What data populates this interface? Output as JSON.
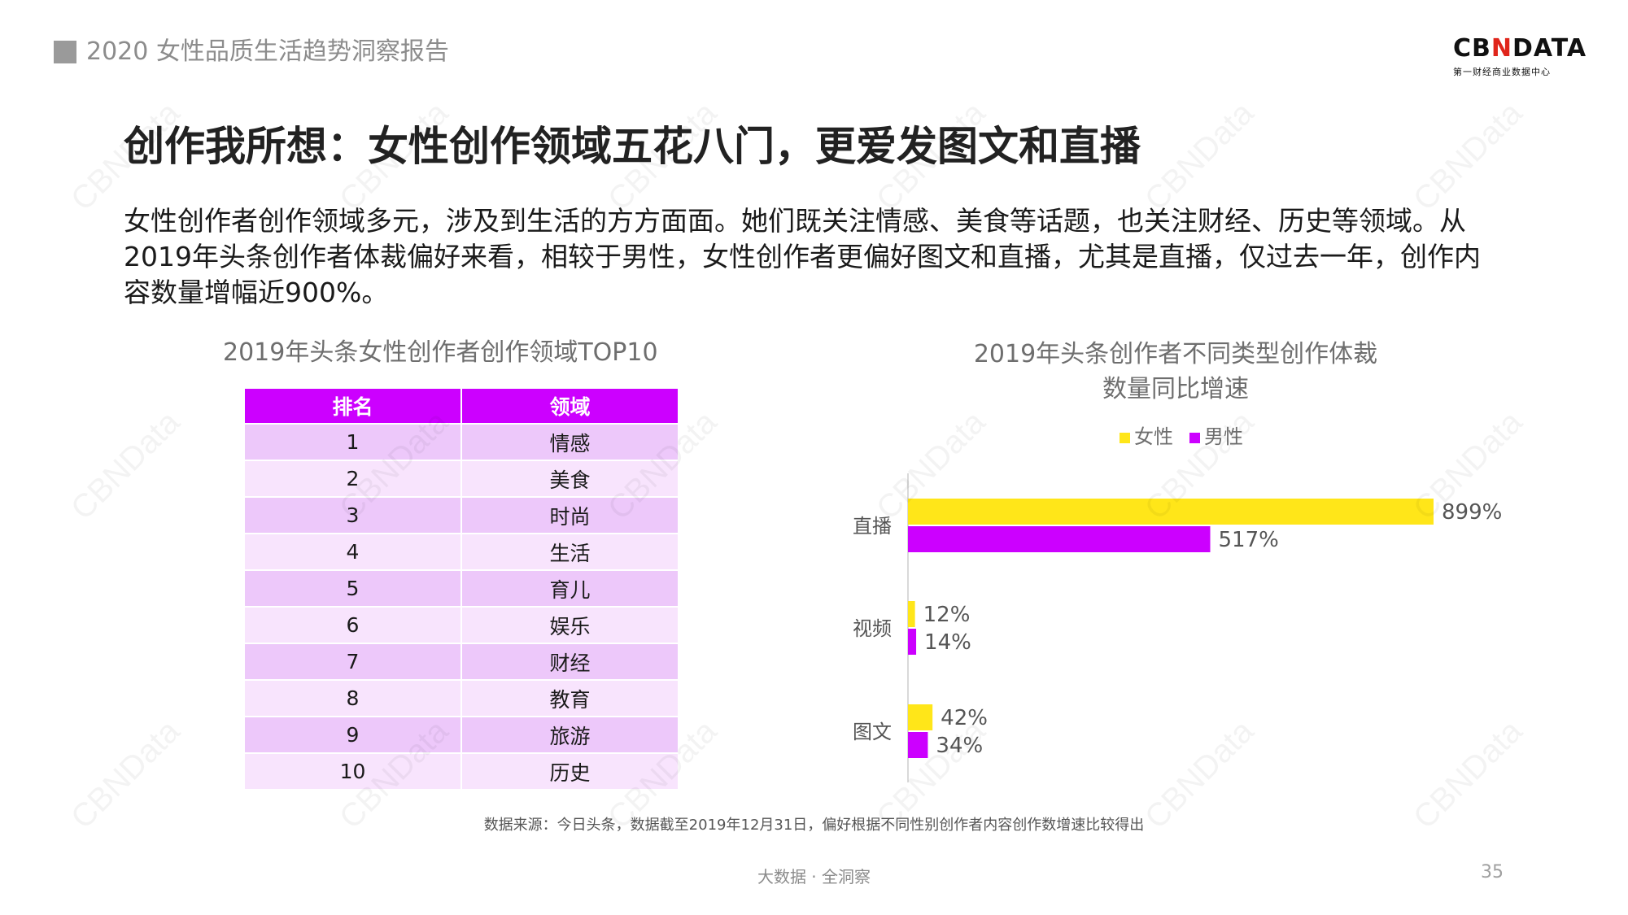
{
  "header": {
    "report_title": "2020 女性品质生活趋势洞察报告",
    "logo_main_left": "CB",
    "logo_main_x": "N",
    "logo_main_right": "DATA",
    "logo_sub": "第一财经商业数据中心"
  },
  "slide": {
    "title": "创作我所想：女性创作领域五花八门，更爱发图文和直播",
    "intro": "女性创作者创作领域多元，涉及到生活的方方面面。她们既关注情感、美食等话题，也关注财经、历史等领域。从2019年头条创作者体裁偏好来看，相较于男性，女性创作者更偏好图文和直播，尤其是直播，仅过去一年，创作内容数量增幅近900%。"
  },
  "table": {
    "title": "2019年头条女性创作者创作领域TOP10",
    "headers": [
      "排名",
      "领域"
    ],
    "rows": [
      [
        "1",
        "情感"
      ],
      [
        "2",
        "美食"
      ],
      [
        "3",
        "时尚"
      ],
      [
        "4",
        "生活"
      ],
      [
        "5",
        "育儿"
      ],
      [
        "6",
        "娱乐"
      ],
      [
        "7",
        "财经"
      ],
      [
        "8",
        "教育"
      ],
      [
        "9",
        "旅游"
      ],
      [
        "10",
        "历史"
      ]
    ],
    "header_color": "#cc00ff",
    "row_colors": [
      "#edc8fa",
      "#f8e4fd"
    ]
  },
  "chart_data": {
    "type": "bar",
    "orientation": "horizontal",
    "title_line1": "2019年头条创作者不同类型创作体裁",
    "title_line2": "数量同比增速",
    "categories": [
      "直播",
      "视频",
      "图文"
    ],
    "series": [
      {
        "name": "女性",
        "values": [
          899,
          12,
          42
        ],
        "labels": [
          "899%",
          "12%",
          "42%"
        ],
        "color": "#ffe619"
      },
      {
        "name": "男性",
        "values": [
          517,
          14,
          34
        ],
        "labels": [
          "517%",
          "14%",
          "34%"
        ],
        "color": "#cc00ff"
      }
    ],
    "xlim": [
      0,
      899
    ],
    "legend": "top",
    "grid": false
  },
  "footer": {
    "source": "数据来源：今日头条，数据截至2019年12月31日，偏好根据不同性别创作者内容创作数增速比较得出",
    "tagline": "大数据 · 全洞察",
    "page_number": "35"
  },
  "watermark": "CBNData"
}
